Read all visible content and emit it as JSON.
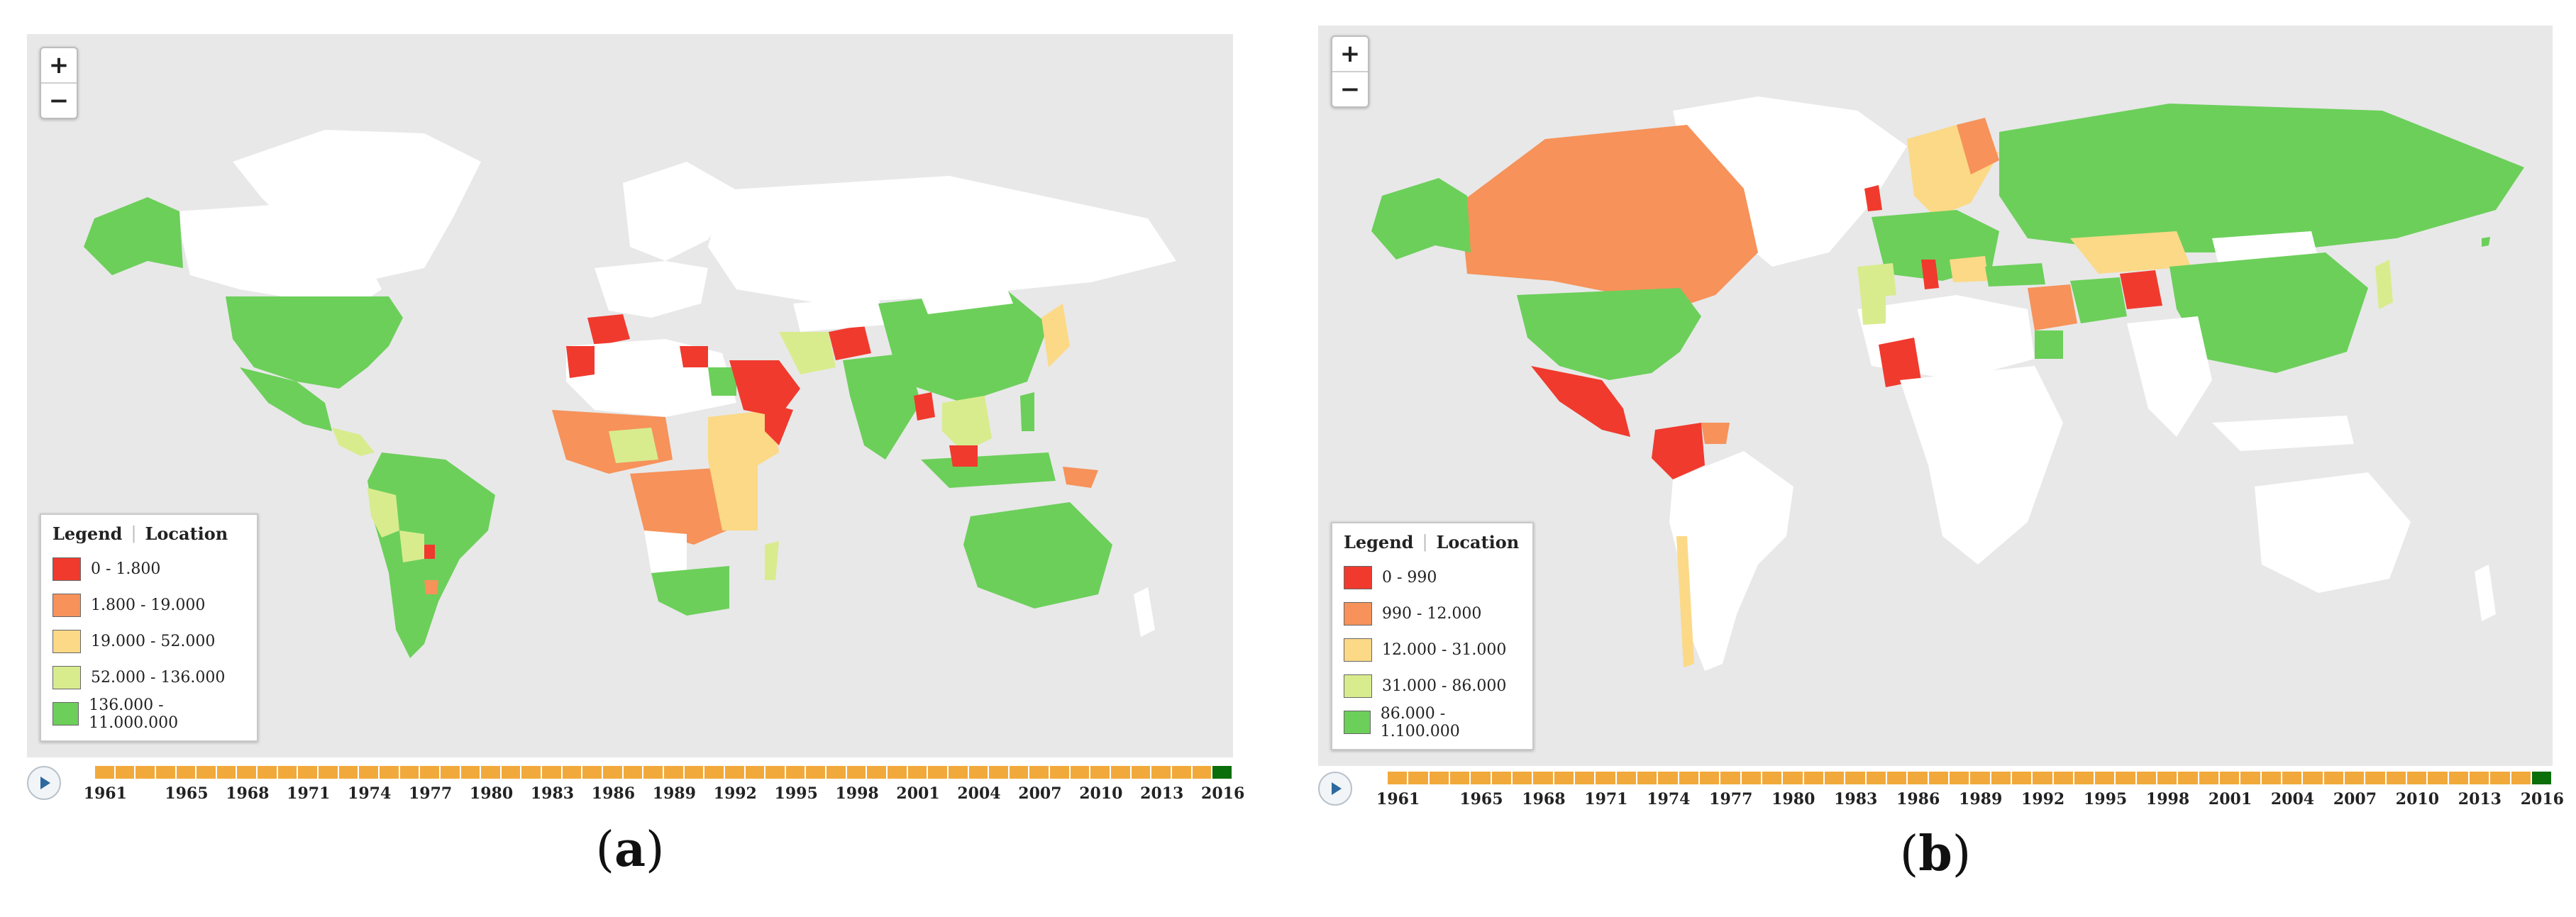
{
  "panels": [
    {
      "id": "a",
      "caption_open": "(",
      "caption_letter": "a",
      "caption_close": ")",
      "zoom_in": "+",
      "zoom_out": "−",
      "legend": {
        "title": "Legend",
        "separator": "|",
        "subtitle": "Location",
        "classes": [
          {
            "label": "0 - 1.800",
            "color": "#f03a2e"
          },
          {
            "label": "1.800 - 19.000",
            "color": "#f6925a"
          },
          {
            "label": "19.000 - 52.000",
            "color": "#fbd986"
          },
          {
            "label": "52.000 - 136.000",
            "color": "#d8ec8e"
          },
          {
            "label": "136.000 - 11.000.000",
            "color": "#6ccf5a"
          }
        ]
      },
      "timeline": {
        "years": [
          "1961",
          "1965",
          "1968",
          "1971",
          "1974",
          "1977",
          "1980",
          "1983",
          "1986",
          "1989",
          "1992",
          "1995",
          "1998",
          "2001",
          "2004",
          "2007",
          "2010",
          "2013",
          "2016"
        ],
        "selected_year": "2016"
      }
    },
    {
      "id": "b",
      "caption_open": "(",
      "caption_letter": "b",
      "caption_close": ")",
      "zoom_in": "+",
      "zoom_out": "−",
      "legend": {
        "title": "Legend",
        "separator": "|",
        "subtitle": "Location",
        "classes": [
          {
            "label": "0 - 990",
            "color": "#f03a2e"
          },
          {
            "label": "990 - 12.000",
            "color": "#f6925a"
          },
          {
            "label": "12.000 - 31.000",
            "color": "#fbd986"
          },
          {
            "label": "31.000 - 86.000",
            "color": "#d8ec8e"
          },
          {
            "label": "86.000 - 1.100.000",
            "color": "#6ccf5a"
          }
        ]
      },
      "timeline": {
        "years": [
          "1961",
          "1965",
          "1968",
          "1971",
          "1974",
          "1977",
          "1980",
          "1983",
          "1986",
          "1989",
          "1992",
          "1995",
          "1998",
          "2001",
          "2004",
          "2007",
          "2010",
          "2013",
          "2016"
        ],
        "selected_year": "2016"
      }
    }
  ],
  "colors": {
    "ocean": "#e8e8e8",
    "no_data": "#ffffff",
    "timeline_segment": "#f2a93b",
    "timeline_selected": "#0a6e0a",
    "play_icon": "#2c6aa0"
  }
}
